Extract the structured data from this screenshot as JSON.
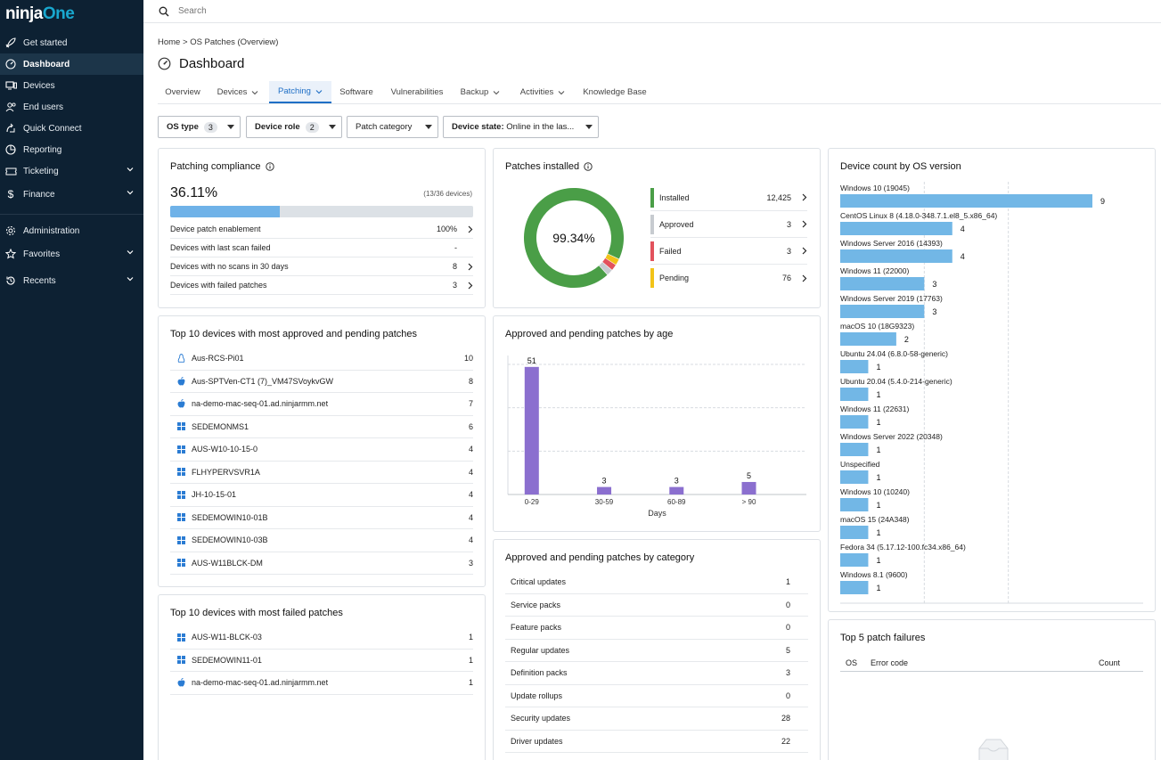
{
  "app": {
    "logo_main": "ninja",
    "logo_accent": "One"
  },
  "sidebar": {
    "items": [
      {
        "label": "Get started",
        "icon": "rocket-icon"
      },
      {
        "label": "Dashboard",
        "icon": "dashboard-gauge-icon"
      },
      {
        "label": "Devices",
        "icon": "devices-icon"
      },
      {
        "label": "End users",
        "icon": "users-icon"
      },
      {
        "label": "Quick Connect",
        "icon": "quick-connect-icon"
      },
      {
        "label": "Reporting",
        "icon": "reporting-icon"
      },
      {
        "label": "Ticketing",
        "icon": "ticket-icon"
      },
      {
        "label": "Finance",
        "icon": "dollar-icon"
      },
      {
        "label": "Administration",
        "icon": "gear-icon"
      },
      {
        "label": "Favorites",
        "icon": "star-icon"
      },
      {
        "label": "Recents",
        "icon": "history-icon"
      }
    ]
  },
  "topbar": {
    "search_placeholder": "Search"
  },
  "breadcrumb": {
    "home": "Home",
    "sep": ">",
    "current": "OS Patches (Overview)"
  },
  "page": {
    "title": "Dashboard"
  },
  "tabs": [
    "Overview",
    "Devices",
    "Patching",
    "Software",
    "Vulnerabilities",
    "Backup",
    "Activities",
    "Knowledge Base"
  ],
  "filters": {
    "os_type": {
      "label": "OS type",
      "count": "3"
    },
    "device_role": {
      "label": "Device role",
      "count": "2"
    },
    "patch_category": {
      "label": "Patch category"
    },
    "device_state": {
      "label": "Device state:",
      "value": "Online in the las..."
    }
  },
  "compliance": {
    "title": "Patching compliance",
    "percent": "36.11%",
    "percent_value": 36.11,
    "devices": "(13/36 devices)",
    "rows": [
      {
        "label": "Device patch enablement",
        "value": "100%"
      },
      {
        "label": "Devices with last scan failed",
        "value": "-"
      },
      {
        "label": "Devices with no scans in 30 days",
        "value": "8"
      },
      {
        "label": "Devices with failed patches",
        "value": "3"
      }
    ]
  },
  "patches_installed": {
    "title": "Patches installed",
    "center": "99.34%",
    "items": [
      {
        "label": "Installed",
        "value": "12,425",
        "num": 12425,
        "color": "#4a9e47"
      },
      {
        "label": "Approved",
        "value": "3",
        "num": 3,
        "color": "#c7cbd0"
      },
      {
        "label": "Failed",
        "value": "3",
        "num": 3,
        "color": "#e2525c"
      },
      {
        "label": "Pending",
        "value": "76",
        "num": 76,
        "color": "#f2c318"
      }
    ]
  },
  "top10_pending": {
    "title": "Top 10 devices with most approved and pending patches",
    "rows": [
      {
        "name": "Aus-RCS-Pi01",
        "count": "10",
        "os": "linux"
      },
      {
        "name": "Aus-SPTVen-CT1 (7)_VM47SVoykvGW",
        "count": "8",
        "os": "mac"
      },
      {
        "name": "na-demo-mac-seq-01.ad.ninjarmm.net",
        "count": "7",
        "os": "mac"
      },
      {
        "name": "SEDEMONMS1",
        "count": "6",
        "os": "windows"
      },
      {
        "name": "AUS-W10-10-15-0",
        "count": "4",
        "os": "windows"
      },
      {
        "name": "FLHYPERVSVR1A",
        "count": "4",
        "os": "windows"
      },
      {
        "name": "JH-10-15-01",
        "count": "4",
        "os": "windows"
      },
      {
        "name": "SEDEMOWIN10-01B",
        "count": "4",
        "os": "windows"
      },
      {
        "name": "SEDEMOWIN10-03B",
        "count": "4",
        "os": "windows"
      },
      {
        "name": "AUS-W11BLCK-DM",
        "count": "3",
        "os": "windows"
      }
    ]
  },
  "top10_failed": {
    "title": "Top 10 devices with most failed patches",
    "rows": [
      {
        "name": "AUS-W11-BLCK-03",
        "count": "1",
        "os": "windows"
      },
      {
        "name": "SEDEMOWIN11-01",
        "count": "1",
        "os": "windows"
      },
      {
        "name": "na-demo-mac-seq-01.ad.ninjarmm.net",
        "count": "1",
        "os": "mac"
      }
    ]
  },
  "age_chart": {
    "title": "Approved and pending patches by age",
    "chart_data": {
      "type": "bar",
      "categories": [
        "0-29",
        "30-59",
        "60-89",
        "> 90"
      ],
      "values": [
        51,
        3,
        3,
        5
      ],
      "xlabel": "Days",
      "ylim": [
        0,
        52
      ],
      "color": "#8b6fcf"
    }
  },
  "category": {
    "title": "Approved and pending patches by category",
    "rows": [
      {
        "label": "Critical updates",
        "value": "1"
      },
      {
        "label": "Service packs",
        "value": "0"
      },
      {
        "label": "Feature packs",
        "value": "0"
      },
      {
        "label": "Regular updates",
        "value": "5"
      },
      {
        "label": "Definition packs",
        "value": "3"
      },
      {
        "label": "Update rollups",
        "value": "0"
      },
      {
        "label": "Security updates",
        "value": "28"
      },
      {
        "label": "Driver updates",
        "value": "22"
      }
    ]
  },
  "os_chart": {
    "title": "Device count by OS version",
    "chart_data": {
      "type": "bar",
      "orientation": "horizontal",
      "categories": [
        "Windows 10 (19045)",
        "CentOS Linux 8 (4.18.0-348.7.1.el8_5.x86_64)",
        "Windows Server 2016 (14393)",
        "Windows 11 (22000)",
        "Windows Server 2019 (17763)",
        "macOS 10 (18G9323)",
        "Ubuntu 24.04 (6.8.0-58-generic)",
        "Ubuntu 20.04 (5.4.0-214-generic)",
        "Windows 11 (22631)",
        "Windows Server 2022 (20348)",
        "Unspecified",
        "Windows 10 (10240)",
        "macOS 15 (24A348)",
        "Fedora 34 (5.17.12-100.fc34.x86_64)",
        "Windows 8.1 (9600)"
      ],
      "values": [
        9,
        4,
        4,
        3,
        3,
        2,
        1,
        1,
        1,
        1,
        1,
        1,
        1,
        1,
        1
      ],
      "xlim": [
        0,
        9
      ],
      "color": "#72b7e6"
    }
  },
  "failures": {
    "title": "Top 5 patch failures",
    "columns": [
      "OS",
      "Error code",
      "Count"
    ]
  }
}
